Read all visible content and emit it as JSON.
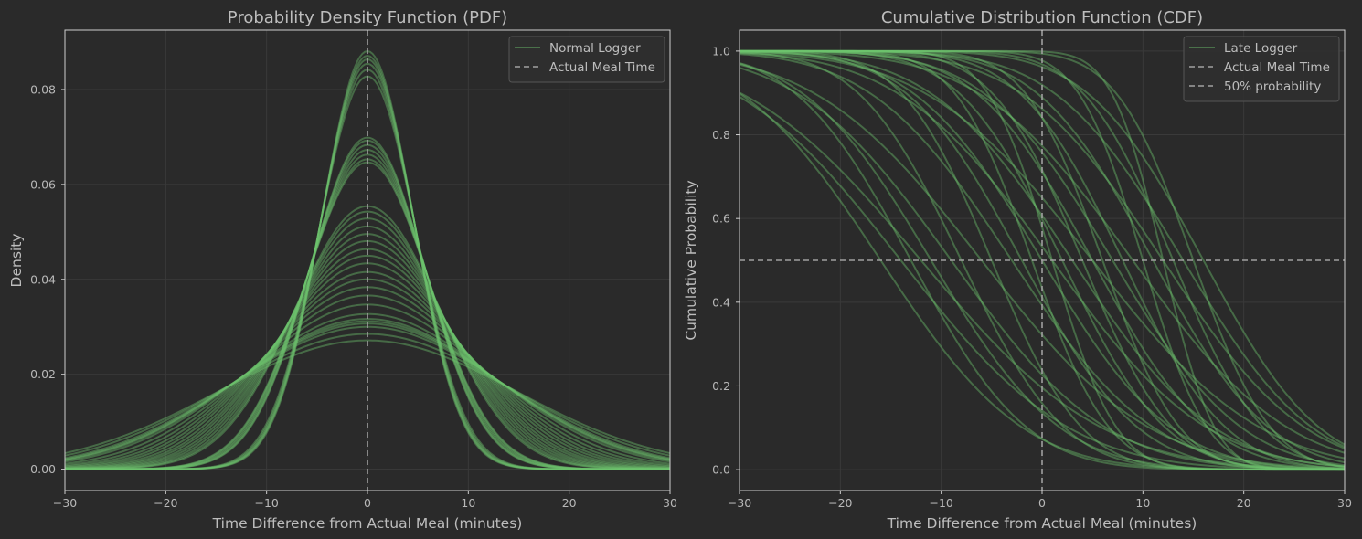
{
  "colors": {
    "background": "#2a2a2a",
    "curve": "#6dc46d",
    "reference_line": "#a0a0a0",
    "grid": "#3a3a3a",
    "frame": "#cfcfcf",
    "legend_bg": "#2f2f2f",
    "legend_border": "#555555"
  },
  "chart_data": [
    {
      "type": "line",
      "title": "Probability Density Function (PDF)",
      "xlabel": "Time Difference from Actual Meal (minutes)",
      "ylabel": "Density",
      "xlim": [
        -30,
        30
      ],
      "ylim": [
        -0.0045,
        0.0925
      ],
      "xticks": [
        -30,
        -20,
        -10,
        0,
        10,
        20,
        30
      ],
      "xtick_labels": [
        "−30",
        "−20",
        "−10",
        "0",
        "10",
        "20",
        "30"
      ],
      "yticks": [
        0.0,
        0.02,
        0.04,
        0.06,
        0.08
      ],
      "ytick_labels": [
        "0.00",
        "0.02",
        "0.04",
        "0.06",
        "0.08"
      ],
      "grid": true,
      "legend_position": "top-right",
      "legend": [
        {
          "label": "Normal Logger",
          "style": "solid"
        },
        {
          "label": "Actual Meal Time",
          "style": "dashed"
        }
      ],
      "reference_lines": [
        {
          "orientation": "vertical",
          "x": 0,
          "label": "Actual Meal Time"
        }
      ],
      "curve_family": "normal-pdf",
      "series_means": [
        0,
        0,
        0,
        0,
        0,
        0,
        0,
        0,
        0,
        0,
        0,
        0,
        0,
        0,
        0,
        0,
        0,
        0,
        0,
        0,
        0,
        0,
        0,
        0,
        0,
        0,
        0,
        0,
        0,
        0,
        0,
        0,
        0,
        0
      ],
      "series_sds": [
        4.53,
        4.58,
        4.62,
        4.67,
        4.74,
        4.82,
        5.71,
        5.76,
        5.84,
        5.93,
        6.02,
        6.11,
        6.17,
        7.2,
        7.35,
        7.55,
        7.8,
        8.05,
        8.3,
        8.6,
        8.87,
        9.2,
        9.6,
        9.97,
        10.4,
        10.9,
        11.5,
        12.2,
        12.6,
        12.8,
        13.0,
        13.3,
        14.0,
        14.7
      ]
    },
    {
      "type": "line",
      "title": "Cumulative Distribution Function (CDF)",
      "xlabel": "Time Difference from Actual Meal (minutes)",
      "ylabel": "Cumulative Probability",
      "xlim": [
        -30,
        30
      ],
      "ylim": [
        -0.05,
        1.05
      ],
      "xticks": [
        -30,
        -20,
        -10,
        0,
        10,
        20,
        30
      ],
      "xtick_labels": [
        "−30",
        "−20",
        "−10",
        "0",
        "10",
        "20",
        "30"
      ],
      "yticks": [
        0.0,
        0.2,
        0.4,
        0.6,
        0.8,
        1.0
      ],
      "ytick_labels": [
        "0.0",
        "0.2",
        "0.4",
        "0.6",
        "0.8",
        "1.0"
      ],
      "grid": true,
      "legend_position": "top-right",
      "legend": [
        {
          "label": "Late Logger",
          "style": "solid"
        },
        {
          "label": "Actual Meal Time",
          "style": "dashed"
        },
        {
          "label": "50% probability",
          "style": "dashed"
        }
      ],
      "reference_lines": [
        {
          "orientation": "vertical",
          "x": 0,
          "label": "Actual Meal Time"
        },
        {
          "orientation": "horizontal",
          "y": 0.5,
          "label": "50% probability"
        }
      ],
      "curve_family": "normal-survival",
      "series_means": [
        -16,
        -14,
        -13,
        -12,
        -11,
        -9,
        -8,
        -6,
        -5,
        -3,
        -2,
        -1,
        0,
        1,
        1,
        2,
        3,
        4,
        5,
        5,
        6,
        7,
        8,
        9,
        10,
        11,
        12,
        12,
        13,
        14,
        15,
        16
      ],
      "series_sds": [
        11,
        13,
        9,
        14,
        10,
        12,
        8,
        13,
        7,
        11,
        9,
        6,
        10,
        5,
        12,
        8,
        11,
        7,
        9,
        13,
        6,
        10,
        8,
        12,
        5,
        9,
        4,
        11,
        7,
        10,
        6,
        9
      ]
    }
  ]
}
